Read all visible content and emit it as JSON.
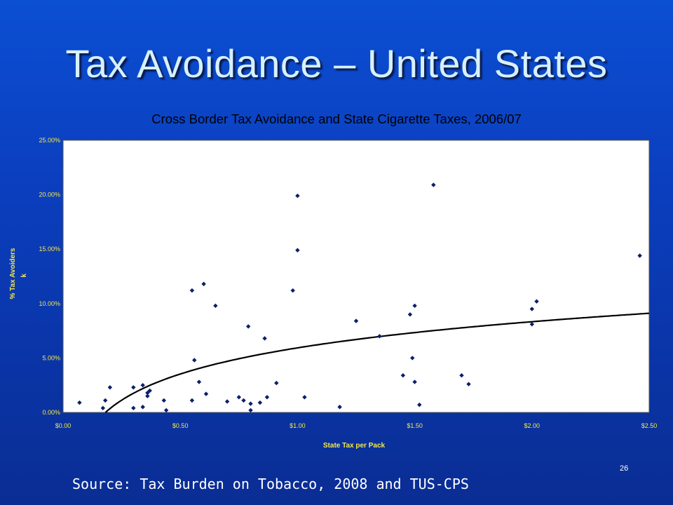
{
  "slide": {
    "title": "Tax Avoidance – United States",
    "source": "Source: Tax Burden on Tobacco, 2008 and TUS-CPS",
    "slide_number": "26"
  },
  "chart_data": {
    "type": "scatter",
    "title": "Cross Border Tax Avoidance and State Cigarette Taxes, 2006/07",
    "xlabel": "State Tax per Pack",
    "ylabel": "% Tax Avoiders",
    "ylabel_extra": "k",
    "xlim": [
      0,
      2.5
    ],
    "ylim": [
      0,
      25
    ],
    "x_ticks": [
      0,
      0.5,
      1.0,
      1.5,
      2.0,
      2.5
    ],
    "x_tick_labels": [
      "$0.00",
      "$0.50",
      "$1.00",
      "$1.50",
      "$2.00",
      "$2.50"
    ],
    "y_ticks": [
      0,
      5,
      10,
      15,
      20,
      25
    ],
    "y_tick_labels": [
      "0.00%",
      "5.00%",
      "10.00%",
      "15.00%",
      "20.00%",
      "25.00%"
    ],
    "grid": false,
    "colors": {
      "point": "#0a1f6b",
      "trend": "#000000",
      "axis_label": "#f5e84c",
      "plot_bg": "#ffffff"
    },
    "points": [
      [
        0.07,
        0.9
      ],
      [
        0.17,
        0.4
      ],
      [
        0.18,
        1.1
      ],
      [
        0.2,
        2.3
      ],
      [
        0.3,
        0.4
      ],
      [
        0.3,
        2.3
      ],
      [
        0.34,
        2.5
      ],
      [
        0.34,
        0.5
      ],
      [
        0.36,
        1.5
      ],
      [
        0.36,
        1.8
      ],
      [
        0.37,
        2.0
      ],
      [
        0.43,
        1.1
      ],
      [
        0.44,
        0.2
      ],
      [
        0.55,
        11.2
      ],
      [
        0.55,
        1.1
      ],
      [
        0.56,
        4.8
      ],
      [
        0.58,
        2.8
      ],
      [
        0.6,
        11.8
      ],
      [
        0.61,
        1.7
      ],
      [
        0.65,
        9.8
      ],
      [
        0.7,
        1.0
      ],
      [
        0.75,
        1.4
      ],
      [
        0.77,
        1.1
      ],
      [
        0.79,
        7.9
      ],
      [
        0.8,
        0.8
      ],
      [
        0.8,
        0.2
      ],
      [
        0.84,
        0.9
      ],
      [
        0.86,
        6.8
      ],
      [
        0.87,
        1.4
      ],
      [
        0.91,
        2.7
      ],
      [
        0.98,
        11.2
      ],
      [
        1.0,
        14.9
      ],
      [
        1.0,
        19.9
      ],
      [
        1.03,
        1.4
      ],
      [
        1.18,
        0.5
      ],
      [
        1.25,
        8.4
      ],
      [
        1.35,
        7.0
      ],
      [
        1.45,
        3.4
      ],
      [
        1.48,
        9.0
      ],
      [
        1.49,
        5.0
      ],
      [
        1.5,
        9.8
      ],
      [
        1.5,
        2.8
      ],
      [
        1.52,
        0.7
      ],
      [
        1.58,
        20.9
      ],
      [
        1.7,
        3.4
      ],
      [
        1.73,
        2.6
      ],
      [
        2.0,
        9.5
      ],
      [
        2.0,
        8.1
      ],
      [
        2.02,
        10.2
      ],
      [
        2.46,
        14.4
      ]
    ],
    "trendline": {
      "type": "logarithmic",
      "a": 5.93,
      "b": 3.465
    }
  }
}
